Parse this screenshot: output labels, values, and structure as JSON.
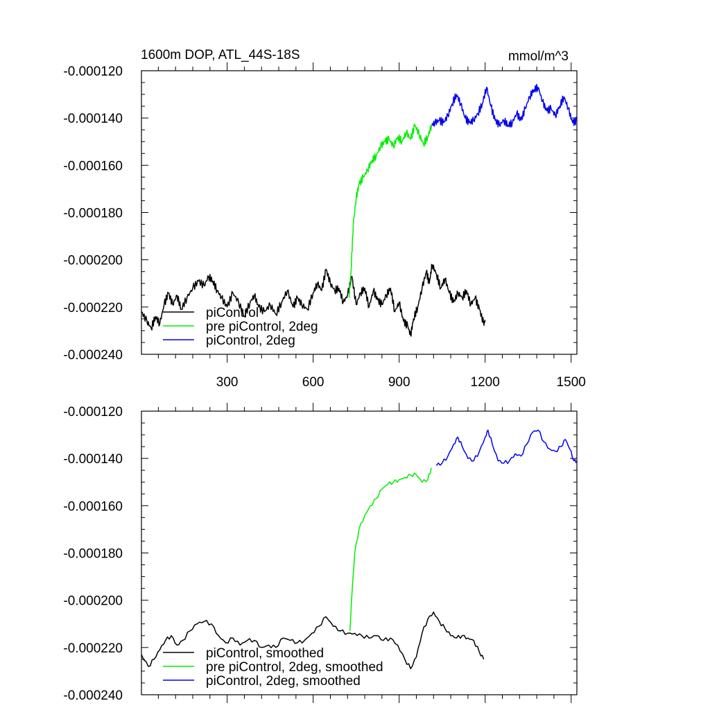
{
  "figure": {
    "title_left": "1600m DOP, ATL_44S-18S",
    "title_right": "mmol/m^3"
  },
  "colors": {
    "piControl": "#000000",
    "pre_piControl_2deg": "#00ee00",
    "piControl_2deg": "#0000ee"
  },
  "chart_data": [
    {
      "type": "line",
      "xlim": [
        1,
        1520
      ],
      "ylim": [
        -0.00024,
        -0.00012
      ],
      "xticks": [
        300,
        600,
        900,
        1200,
        1500
      ],
      "xtick_labels": [
        "300",
        "600",
        "900",
        "1200",
        "1500"
      ],
      "show_xtick_labels": true,
      "yticks": [
        -0.00012,
        -0.00014,
        -0.00016,
        -0.00018,
        -0.0002,
        -0.00022,
        -0.00024
      ],
      "ytick_labels": [
        "-0.000120",
        "-0.000140",
        "-0.000160",
        "-0.000180",
        "-0.000200",
        "-0.000220",
        "-0.000240"
      ],
      "legend_position": "bottom-left",
      "series": [
        {
          "name": "piControl",
          "color": "#000000",
          "smoothed": false,
          "points": [
            [
              1,
              -0.000222
            ],
            [
              20,
              -0.000226
            ],
            [
              35,
              -0.000229
            ],
            [
              50,
              -0.000224
            ],
            [
              65,
              -0.000227
            ],
            [
              80,
              -0.000219
            ],
            [
              95,
              -0.000214
            ],
            [
              110,
              -0.000219
            ],
            [
              125,
              -0.000215
            ],
            [
              140,
              -0.000221
            ],
            [
              160,
              -0.000216
            ],
            [
              180,
              -0.000212
            ],
            [
              200,
              -0.000209
            ],
            [
              220,
              -0.000211
            ],
            [
              235,
              -0.000207
            ],
            [
              250,
              -0.000209
            ],
            [
              265,
              -0.000213
            ],
            [
              280,
              -0.000216
            ],
            [
              300,
              -0.00022
            ],
            [
              320,
              -0.000214
            ],
            [
              340,
              -0.000218
            ],
            [
              360,
              -0.000224
            ],
            [
              380,
              -0.000218
            ],
            [
              395,
              -0.000215
            ],
            [
              410,
              -0.00022
            ],
            [
              430,
              -0.000222
            ],
            [
              450,
              -0.000219
            ],
            [
              470,
              -0.000223
            ],
            [
              490,
              -0.000218
            ],
            [
              510,
              -0.000213
            ],
            [
              530,
              -0.00022
            ],
            [
              545,
              -0.000216
            ],
            [
              560,
              -0.000219
            ],
            [
              580,
              -0.000221
            ],
            [
              600,
              -0.000214
            ],
            [
              615,
              -0.00021
            ],
            [
              630,
              -0.000213
            ],
            [
              645,
              -0.000204
            ],
            [
              660,
              -0.00021
            ],
            [
              675,
              -0.000213
            ],
            [
              690,
              -0.000212
            ],
            [
              705,
              -0.000218
            ],
            [
              720,
              -0.000215
            ],
            [
              735,
              -0.000207
            ],
            [
              750,
              -0.000219
            ],
            [
              765,
              -0.000214
            ],
            [
              780,
              -0.000212
            ],
            [
              795,
              -0.00022
            ],
            [
              810,
              -0.000213
            ],
            [
              825,
              -0.000217
            ],
            [
              840,
              -0.000219
            ],
            [
              855,
              -0.000215
            ],
            [
              870,
              -0.000212
            ],
            [
              885,
              -0.000222
            ],
            [
              900,
              -0.000218
            ],
            [
              915,
              -0.000226
            ],
            [
              930,
              -0.000228
            ],
            [
              940,
              -0.000232
            ],
            [
              950,
              -0.000225
            ],
            [
              965,
              -0.00022
            ],
            [
              980,
              -0.000212
            ],
            [
              995,
              -0.000205
            ],
            [
              1005,
              -0.00021
            ],
            [
              1015,
              -0.000202
            ],
            [
              1030,
              -0.000206
            ],
            [
              1045,
              -0.000212
            ],
            [
              1060,
              -0.000208
            ],
            [
              1075,
              -0.000214
            ],
            [
              1090,
              -0.000218
            ],
            [
              1105,
              -0.000214
            ],
            [
              1120,
              -0.000216
            ],
            [
              1135,
              -0.000213
            ],
            [
              1150,
              -0.000219
            ],
            [
              1165,
              -0.000216
            ],
            [
              1180,
              -0.000221
            ],
            [
              1195,
              -0.000227
            ],
            [
              1200,
              -0.000226
            ]
          ]
        },
        {
          "name": "pre piControl, 2deg",
          "color": "#00ee00",
          "smoothed": false,
          "points": [
            [
              725,
              -0.000216
            ],
            [
              732,
              -0.000205
            ],
            [
              740,
              -0.000185
            ],
            [
              750,
              -0.000174
            ],
            [
              760,
              -0.000168
            ],
            [
              775,
              -0.000165
            ],
            [
              790,
              -0.000162
            ],
            [
              805,
              -0.000158
            ],
            [
              820,
              -0.000156
            ],
            [
              835,
              -0.000152
            ],
            [
              850,
              -0.00015
            ],
            [
              865,
              -0.000149
            ],
            [
              880,
              -0.000152
            ],
            [
              895,
              -0.000148
            ],
            [
              910,
              -0.00015
            ],
            [
              925,
              -0.000146
            ],
            [
              940,
              -0.000149
            ],
            [
              955,
              -0.000143
            ],
            [
              970,
              -0.000147
            ],
            [
              985,
              -0.000151
            ],
            [
              1000,
              -0.000148
            ],
            [
              1013,
              -0.000143
            ]
          ]
        },
        {
          "name": "piControl, 2deg",
          "color": "#0000ee",
          "smoothed": false,
          "points": [
            [
              1013,
              -0.000143
            ],
            [
              1025,
              -0.000142
            ],
            [
              1040,
              -0.000141
            ],
            [
              1055,
              -0.000142
            ],
            [
              1070,
              -0.000139
            ],
            [
              1085,
              -0.000134
            ],
            [
              1100,
              -0.00013
            ],
            [
              1115,
              -0.000134
            ],
            [
              1130,
              -0.00014
            ],
            [
              1145,
              -0.000142
            ],
            [
              1160,
              -0.000141
            ],
            [
              1175,
              -0.000138
            ],
            [
              1190,
              -0.000134
            ],
            [
              1205,
              -0.000127
            ],
            [
              1220,
              -0.000135
            ],
            [
              1235,
              -0.000141
            ],
            [
              1250,
              -0.000143
            ],
            [
              1265,
              -0.000141
            ],
            [
              1280,
              -0.000143
            ],
            [
              1295,
              -0.000142
            ],
            [
              1310,
              -0.000138
            ],
            [
              1325,
              -0.000141
            ],
            [
              1340,
              -0.000136
            ],
            [
              1355,
              -0.000131
            ],
            [
              1370,
              -0.000128
            ],
            [
              1385,
              -0.000127
            ],
            [
              1400,
              -0.000133
            ],
            [
              1415,
              -0.000137
            ],
            [
              1430,
              -0.000136
            ],
            [
              1445,
              -0.000139
            ],
            [
              1460,
              -0.000135
            ],
            [
              1475,
              -0.000131
            ],
            [
              1490,
              -0.000136
            ],
            [
              1505,
              -0.000142
            ],
            [
              1520,
              -0.000141
            ]
          ]
        }
      ]
    },
    {
      "type": "line",
      "xlim": [
        1,
        1520
      ],
      "ylim": [
        -0.00024,
        -0.00012
      ],
      "xticks": [
        300,
        600,
        900,
        1200,
        1500
      ],
      "xtick_labels": [
        "300",
        "600",
        "900",
        "1200",
        "1500"
      ],
      "show_xtick_labels": false,
      "yticks": [
        -0.00012,
        -0.00014,
        -0.00016,
        -0.00018,
        -0.0002,
        -0.00022,
        -0.00024
      ],
      "ytick_labels": [
        "-0.000120",
        "-0.000140",
        "-0.000160",
        "-0.000180",
        "-0.000200",
        "-0.000220",
        "-0.000240"
      ],
      "legend_position": "bottom-left",
      "series": [
        {
          "name": "piControl, smoothed",
          "color": "#000000",
          "smoothed": true,
          "points": [
            [
              1,
              -0.000223
            ],
            [
              25,
              -0.000228
            ],
            [
              45,
              -0.000225
            ],
            [
              65,
              -0.000221
            ],
            [
              85,
              -0.000217
            ],
            [
              105,
              -0.000215
            ],
            [
              125,
              -0.000219
            ],
            [
              145,
              -0.000217
            ],
            [
              170,
              -0.000213
            ],
            [
              195,
              -0.00021
            ],
            [
              220,
              -0.000209
            ],
            [
              245,
              -0.00021
            ],
            [
              270,
              -0.000215
            ],
            [
              295,
              -0.000218
            ],
            [
              320,
              -0.000216
            ],
            [
              345,
              -0.000219
            ],
            [
              370,
              -0.000217
            ],
            [
              395,
              -0.000217
            ],
            [
              420,
              -0.00022
            ],
            [
              445,
              -0.000219
            ],
            [
              470,
              -0.00022
            ],
            [
              495,
              -0.000216
            ],
            [
              520,
              -0.000217
            ],
            [
              545,
              -0.000218
            ],
            [
              570,
              -0.000217
            ],
            [
              595,
              -0.000214
            ],
            [
              620,
              -0.000211
            ],
            [
              645,
              -0.000207
            ],
            [
              670,
              -0.000211
            ],
            [
              695,
              -0.000213
            ],
            [
              720,
              -0.000214
            ],
            [
              745,
              -0.000214
            ],
            [
              770,
              -0.000215
            ],
            [
              795,
              -0.000216
            ],
            [
              820,
              -0.000215
            ],
            [
              845,
              -0.000217
            ],
            [
              870,
              -0.000216
            ],
            [
              895,
              -0.000219
            ],
            [
              920,
              -0.000225
            ],
            [
              940,
              -0.000229
            ],
            [
              960,
              -0.000224
            ],
            [
              980,
              -0.000214
            ],
            [
              1000,
              -0.000208
            ],
            [
              1020,
              -0.000205
            ],
            [
              1040,
              -0.000209
            ],
            [
              1060,
              -0.000212
            ],
            [
              1080,
              -0.000215
            ],
            [
              1100,
              -0.000216
            ],
            [
              1120,
              -0.000215
            ],
            [
              1140,
              -0.000216
            ],
            [
              1160,
              -0.000217
            ],
            [
              1180,
              -0.000222
            ],
            [
              1195,
              -0.000225
            ]
          ]
        },
        {
          "name": "pre piControl, 2deg, smoothed",
          "color": "#00ee00",
          "smoothed": true,
          "points": [
            [
              728,
              -0.000213
            ],
            [
              736,
              -0.000196
            ],
            [
              745,
              -0.00018
            ],
            [
              760,
              -0.00017
            ],
            [
              780,
              -0.000164
            ],
            [
              800,
              -0.00016
            ],
            [
              820,
              -0.000157
            ],
            [
              840,
              -0.000153
            ],
            [
              860,
              -0.000151
            ],
            [
              880,
              -0.00015
            ],
            [
              900,
              -0.000149
            ],
            [
              920,
              -0.000148
            ],
            [
              940,
              -0.000147
            ],
            [
              960,
              -0.000147
            ],
            [
              980,
              -0.00015
            ],
            [
              1000,
              -0.000149
            ],
            [
              1012,
              -0.000144
            ]
          ]
        },
        {
          "name": "piControl, 2deg, smoothed",
          "color": "#0000ee",
          "smoothed": true,
          "points": [
            [
              1030,
              -0.000143
            ],
            [
              1050,
              -0.000142
            ],
            [
              1070,
              -0.000139
            ],
            [
              1090,
              -0.000134
            ],
            [
              1105,
              -0.000131
            ],
            [
              1120,
              -0.000135
            ],
            [
              1140,
              -0.00014
            ],
            [
              1160,
              -0.000141
            ],
            [
              1180,
              -0.000137
            ],
            [
              1200,
              -0.000131
            ],
            [
              1210,
              -0.000128
            ],
            [
              1225,
              -0.000134
            ],
            [
              1245,
              -0.000141
            ],
            [
              1265,
              -0.000142
            ],
            [
              1285,
              -0.000141
            ],
            [
              1305,
              -0.000138
            ],
            [
              1325,
              -0.000139
            ],
            [
              1345,
              -0.000134
            ],
            [
              1365,
              -0.000129
            ],
            [
              1385,
              -0.000128
            ],
            [
              1405,
              -0.000133
            ],
            [
              1425,
              -0.000136
            ],
            [
              1445,
              -0.000137
            ],
            [
              1465,
              -0.000135
            ],
            [
              1480,
              -0.000132
            ],
            [
              1495,
              -0.000136
            ],
            [
              1510,
              -0.000141
            ],
            [
              1520,
              -0.000141
            ]
          ]
        }
      ]
    }
  ]
}
